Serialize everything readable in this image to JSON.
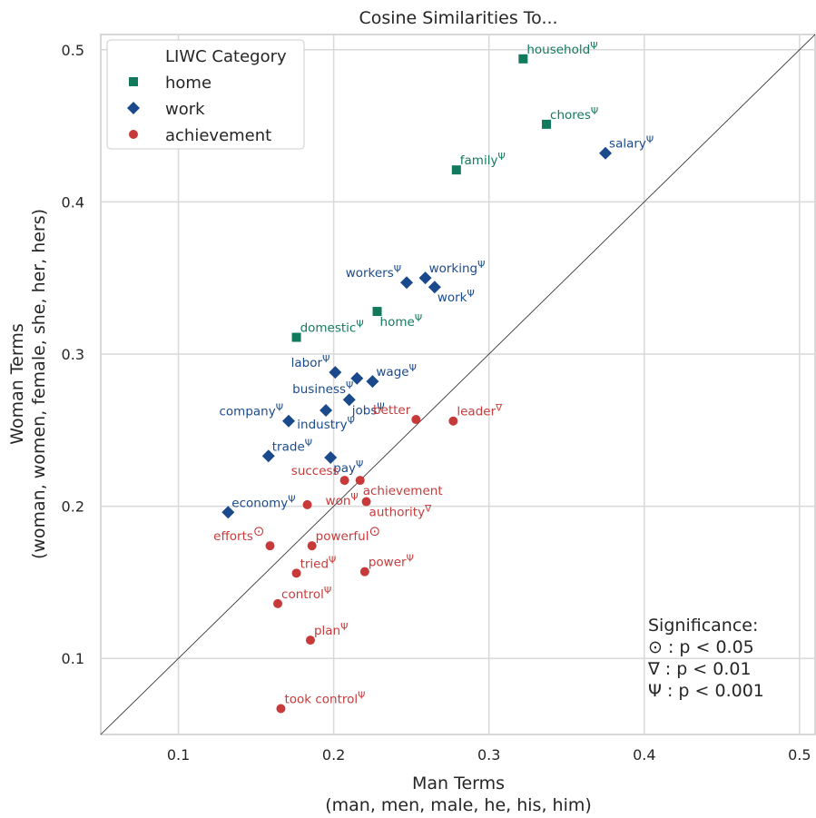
{
  "chart_data": {
    "type": "scatter",
    "title": "Cosine Similarities To...",
    "xlabel": "Man Terms",
    "xlabel_sub": "(man, men, male, he, his, him)",
    "ylabel": "Woman Terms",
    "ylabel_sub": "(woman, women, female, she, her, hers)",
    "xlim": [
      0.05,
      0.51
    ],
    "ylim": [
      0.05,
      0.51
    ],
    "xticks": [
      0.1,
      0.2,
      0.3,
      0.4,
      0.5
    ],
    "xtick_labels": [
      "0.1",
      "0.2",
      "0.3",
      "0.4",
      "0.5"
    ],
    "yticks": [
      0.1,
      0.2,
      0.3,
      0.4,
      0.5
    ],
    "ytick_labels": [
      "0.1",
      "0.2",
      "0.3",
      "0.4",
      "0.5"
    ],
    "grid": true,
    "diagonal_reference_line": true,
    "legend": {
      "title": "LIWC Category",
      "placement": "top-left",
      "entries": [
        {
          "key": "home",
          "label": "home"
        },
        {
          "key": "work",
          "label": "work"
        },
        {
          "key": "achievement",
          "label": "achievement"
        }
      ]
    },
    "categories": {
      "home": {
        "color": "#127a5c",
        "marker": "square"
      },
      "work": {
        "color": "#1b4a8c",
        "marker": "diamond"
      },
      "achievement": {
        "color": "#c83a3a",
        "marker": "circle"
      }
    },
    "significance_legend": {
      "title": "Significance:",
      "lines": [
        "⊙ : p < 0.05",
        "∇ : p < 0.01",
        "Ψ : p < 0.001"
      ]
    },
    "points": [
      {
        "label": "household",
        "sig": "Ψ",
        "category": "home",
        "x": 0.322,
        "y": 0.494,
        "anchor": "ne"
      },
      {
        "label": "chores",
        "sig": "Ψ",
        "category": "home",
        "x": 0.337,
        "y": 0.451,
        "anchor": "ne"
      },
      {
        "label": "family",
        "sig": "Ψ",
        "category": "home",
        "x": 0.279,
        "y": 0.421,
        "anchor": "ne"
      },
      {
        "label": "home",
        "sig": "Ψ",
        "category": "home",
        "x": 0.228,
        "y": 0.328,
        "anchor": "se"
      },
      {
        "label": "domestic",
        "sig": "Ψ",
        "category": "home",
        "x": 0.176,
        "y": 0.311,
        "anchor": "ne"
      },
      {
        "label": "salary",
        "sig": "Ψ",
        "category": "work",
        "x": 0.375,
        "y": 0.432,
        "anchor": "ne"
      },
      {
        "label": "workers",
        "sig": "Ψ",
        "category": "work",
        "x": 0.247,
        "y": 0.347,
        "anchor": "nw"
      },
      {
        "label": "working",
        "sig": "Ψ",
        "category": "work",
        "x": 0.259,
        "y": 0.35,
        "anchor": "ne"
      },
      {
        "label": "work",
        "sig": "Ψ",
        "category": "work",
        "x": 0.265,
        "y": 0.344,
        "anchor": "se"
      },
      {
        "label": "labor",
        "sig": "Ψ",
        "category": "work",
        "x": 0.201,
        "y": 0.288,
        "anchor": "nw"
      },
      {
        "label": "business",
        "sig": "Ψ",
        "category": "work",
        "x": 0.215,
        "y": 0.284,
        "anchor": "sw"
      },
      {
        "label": "wage",
        "sig": "Ψ",
        "category": "work",
        "x": 0.225,
        "y": 0.282,
        "anchor": "ne"
      },
      {
        "label": "jobs",
        "sig": "Ψ",
        "category": "work",
        "x": 0.21,
        "y": 0.27,
        "anchor": "se"
      },
      {
        "label": "company",
        "sig": "Ψ",
        "category": "work",
        "x": 0.171,
        "y": 0.256,
        "anchor": "nw"
      },
      {
        "label": "industry",
        "sig": "Ψ",
        "category": "work",
        "x": 0.195,
        "y": 0.263,
        "anchor": "s"
      },
      {
        "label": "trade",
        "sig": "Ψ",
        "category": "work",
        "x": 0.158,
        "y": 0.233,
        "anchor": "ne"
      },
      {
        "label": "pay",
        "sig": "Ψ",
        "category": "work",
        "x": 0.198,
        "y": 0.232,
        "anchor": "se"
      },
      {
        "label": "economy",
        "sig": "Ψ",
        "category": "work",
        "x": 0.132,
        "y": 0.196,
        "anchor": "ne"
      },
      {
        "label": "leader",
        "sig": "∇",
        "category": "achievement",
        "x": 0.277,
        "y": 0.256,
        "anchor": "ne"
      },
      {
        "label": "better",
        "sig": "",
        "category": "achievement",
        "x": 0.253,
        "y": 0.257,
        "anchor": "nw"
      },
      {
        "label": "success",
        "sig": "",
        "category": "achievement",
        "x": 0.207,
        "y": 0.217,
        "anchor": "nw"
      },
      {
        "label": "achievement",
        "sig": "",
        "category": "achievement",
        "x": 0.217,
        "y": 0.217,
        "anchor": "se"
      },
      {
        "label": "won",
        "sig": "Ψ",
        "category": "achievement",
        "x": 0.183,
        "y": 0.201,
        "anchor": "e"
      },
      {
        "label": "authority",
        "sig": "∇",
        "category": "achievement",
        "x": 0.221,
        "y": 0.203,
        "anchor": "se"
      },
      {
        "label": "efforts",
        "sig": "⊙",
        "category": "achievement",
        "x": 0.159,
        "y": 0.174,
        "anchor": "nw"
      },
      {
        "label": "powerful",
        "sig": "⊙",
        "category": "achievement",
        "x": 0.186,
        "y": 0.174,
        "anchor": "ne"
      },
      {
        "label": "tried",
        "sig": "Ψ",
        "category": "achievement",
        "x": 0.176,
        "y": 0.156,
        "anchor": "ne"
      },
      {
        "label": "power",
        "sig": "Ψ",
        "category": "achievement",
        "x": 0.22,
        "y": 0.157,
        "anchor": "ne"
      },
      {
        "label": "control",
        "sig": "Ψ",
        "category": "achievement",
        "x": 0.164,
        "y": 0.136,
        "anchor": "ne"
      },
      {
        "label": "plan",
        "sig": "Ψ",
        "category": "achievement",
        "x": 0.185,
        "y": 0.112,
        "anchor": "ne"
      },
      {
        "label": "took control",
        "sig": "Ψ",
        "category": "achievement",
        "x": 0.166,
        "y": 0.067,
        "anchor": "ne"
      }
    ]
  }
}
